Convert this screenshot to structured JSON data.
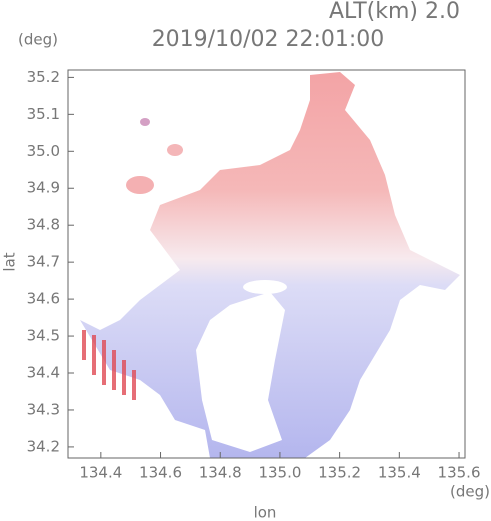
{
  "chart_data": {
    "type": "map",
    "title": "2019/10/02 22:01:00",
    "subtitle": "ALT(km) 2.0",
    "x_label": "lon",
    "x_unit": "(deg)",
    "y_label": "lat",
    "y_unit": "(deg)",
    "xlim": [
      134.29,
      135.62
    ],
    "ylim": [
      34.17,
      35.22
    ],
    "xticks": [
      134.4,
      134.6,
      134.8,
      {
        "value": 135,
        "label": "135.0"
      },
      135.2,
      135.4,
      135.6
    ],
    "yticks": [
      34.2,
      34.3,
      34.4,
      34.5,
      34.6,
      34.7,
      34.8,
      34.9,
      {
        "value": 35,
        "label": "35.0"
      },
      35.1,
      35.2
    ]
  }
}
